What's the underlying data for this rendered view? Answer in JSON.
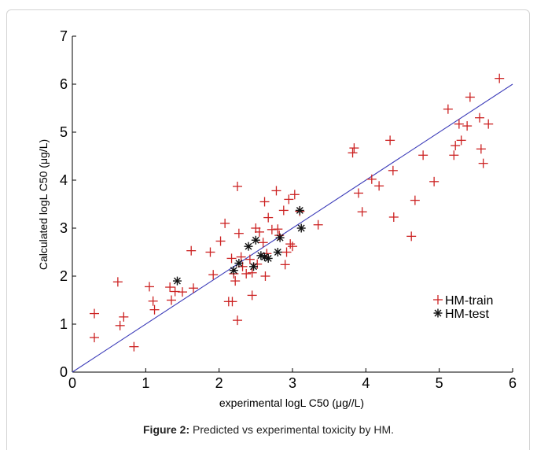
{
  "caption": {
    "label": "Figure 2:",
    "text": " Predicted vs experimental toxicity by HM."
  },
  "colors": {
    "train": "#cc2222",
    "test": "#111111",
    "line": "#3a3ab8",
    "axis": "#000000"
  },
  "chart_data": {
    "type": "scatter",
    "xlabel": "experimental logL C50 (μg//L)",
    "ylabel": "Calculated logL C50 (μg/L)",
    "xlim": [
      0,
      6
    ],
    "ylim": [
      0,
      7
    ],
    "xticks": [
      "0",
      "1",
      "2",
      "3",
      "4",
      "5",
      "6"
    ],
    "yticks": [
      "0",
      "1",
      "2",
      "3",
      "4",
      "5",
      "6",
      "7"
    ],
    "grid": false,
    "legend_position": "right, near bottom",
    "series": [
      {
        "name": "HM-train",
        "marker": "+",
        "points": [
          [
            0.3,
            1.22
          ],
          [
            0.3,
            0.72
          ],
          [
            0.62,
            1.88
          ],
          [
            0.65,
            0.97
          ],
          [
            0.7,
            1.15
          ],
          [
            0.84,
            0.53
          ],
          [
            1.05,
            1.78
          ],
          [
            1.1,
            1.48
          ],
          [
            1.12,
            1.3
          ],
          [
            1.33,
            1.77
          ],
          [
            1.35,
            1.5
          ],
          [
            1.4,
            1.68
          ],
          [
            1.5,
            1.67
          ],
          [
            1.62,
            2.53
          ],
          [
            1.65,
            1.75
          ],
          [
            1.88,
            2.5
          ],
          [
            1.92,
            2.03
          ],
          [
            2.02,
            2.73
          ],
          [
            2.08,
            3.1
          ],
          [
            2.13,
            1.47
          ],
          [
            2.17,
            2.37
          ],
          [
            2.18,
            1.47
          ],
          [
            2.2,
            2.05
          ],
          [
            2.22,
            1.9
          ],
          [
            2.25,
            3.87
          ],
          [
            2.25,
            1.08
          ],
          [
            2.27,
            2.89
          ],
          [
            2.3,
            2.4
          ],
          [
            2.32,
            2.2
          ],
          [
            2.37,
            2.05
          ],
          [
            2.42,
            2.35
          ],
          [
            2.45,
            1.6
          ],
          [
            2.45,
            2.07
          ],
          [
            2.5,
            3.0
          ],
          [
            2.52,
            2.25
          ],
          [
            2.55,
            2.92
          ],
          [
            2.6,
            2.7
          ],
          [
            2.62,
            3.55
          ],
          [
            2.63,
            2.0
          ],
          [
            2.65,
            2.47
          ],
          [
            2.67,
            3.22
          ],
          [
            2.72,
            2.97
          ],
          [
            2.78,
            3.78
          ],
          [
            2.8,
            2.98
          ],
          [
            2.82,
            2.85
          ],
          [
            2.88,
            3.37
          ],
          [
            2.9,
            2.24
          ],
          [
            2.92,
            2.5
          ],
          [
            2.95,
            3.6
          ],
          [
            2.97,
            2.67
          ],
          [
            3.0,
            2.62
          ],
          [
            3.03,
            3.7
          ],
          [
            3.1,
            3.35
          ],
          [
            3.35,
            3.07
          ],
          [
            3.82,
            4.57
          ],
          [
            3.84,
            4.67
          ],
          [
            3.9,
            3.73
          ],
          [
            3.95,
            3.34
          ],
          [
            4.08,
            4.02
          ],
          [
            4.18,
            3.88
          ],
          [
            4.33,
            4.83
          ],
          [
            4.37,
            4.2
          ],
          [
            4.38,
            3.23
          ],
          [
            4.62,
            2.83
          ],
          [
            4.67,
            3.58
          ],
          [
            4.78,
            4.52
          ],
          [
            4.93,
            3.97
          ],
          [
            5.12,
            5.48
          ],
          [
            5.2,
            4.52
          ],
          [
            5.22,
            4.72
          ],
          [
            5.27,
            5.17
          ],
          [
            5.3,
            4.83
          ],
          [
            5.38,
            5.13
          ],
          [
            5.42,
            5.73
          ],
          [
            5.55,
            5.3
          ],
          [
            5.57,
            4.65
          ],
          [
            5.6,
            4.35
          ],
          [
            5.67,
            5.17
          ],
          [
            5.82,
            6.12
          ]
        ]
      },
      {
        "name": "HM-test",
        "marker": "*",
        "points": [
          [
            1.43,
            1.9
          ],
          [
            2.2,
            2.12
          ],
          [
            2.27,
            2.27
          ],
          [
            2.4,
            2.62
          ],
          [
            2.47,
            2.2
          ],
          [
            2.5,
            2.75
          ],
          [
            2.57,
            2.43
          ],
          [
            2.62,
            2.4
          ],
          [
            2.67,
            2.37
          ],
          [
            2.8,
            2.5
          ],
          [
            2.83,
            2.8
          ],
          [
            3.1,
            3.37
          ],
          [
            3.12,
            3.0
          ]
        ]
      },
      {
        "name": "fit",
        "type": "line",
        "points": [
          [
            0,
            0
          ],
          [
            6,
            6
          ]
        ]
      }
    ]
  }
}
